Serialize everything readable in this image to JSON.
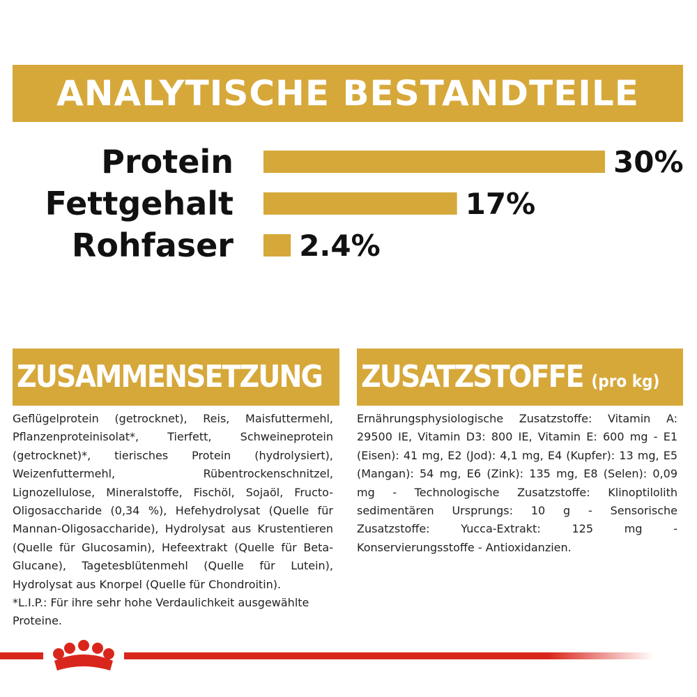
{
  "header": {
    "title": "ANALYTISCHE BESTANDTEILE"
  },
  "chart_data": {
    "type": "bar",
    "categories": [
      "Protein",
      "Fettgehalt",
      "Rohfaser"
    ],
    "values": [
      30,
      17,
      2.4
    ],
    "value_labels": [
      "30%",
      "17%",
      "2.4%"
    ],
    "color": "#d6a83a"
  },
  "composition": {
    "title": "ZUSAMMENSETZUNG",
    "text": "Geflügelprotein (getrocknet), Reis, Maisfuttermehl, Pflanzenproteinisolat*, Tierfett, Schweineprotein (getrocknet)*, tierisches Protein (hydrolysiert), Weizenfuttermehl, Rübentrockenschnitzel, Lignozellulose, Mineralstoffe, Fischöl, Sojaöl, Fructo-Oligosaccharide (0,34 %), Hefehydrolysat (Quelle für Mannan-Oligosaccharide), Hydrolysat aus Krustentieren (Quelle für Glucosamin), Hefeextrakt (Quelle für Beta-Glucane), Tagetesblütenmehl (Quelle für Lutein), Hydrolysat aus Knorpel (Quelle für Chondroitin).",
    "note": "*L.I.P.: Für ihre sehr hohe Verdaulichkeit ausgewählte Proteine."
  },
  "additives": {
    "title": "ZUSATZSTOFFE",
    "title_suffix": "(pro kg)",
    "text": "Ernährungsphysiologische Zusatzstoffe: Vitamin A: 29500 IE, Vitamin D3: 800 IE, Vitamin E: 600 mg - E1 (Eisen): 41 mg, E2 (Jod): 4,1 mg, E4 (Kupfer): 13 mg, E5 (Mangan): 54 mg, E6 (Zink): 135 mg, E8 (Selen): 0,09 mg - Technologische Zusatzstoffe: Klinoptilolith sedimentären Ursprungs: 10 g - Sensorische Zusatzstoffe: Yucca-Extrakt: 125 mg - Konservierungsstoffe - Antioxidanzien."
  }
}
